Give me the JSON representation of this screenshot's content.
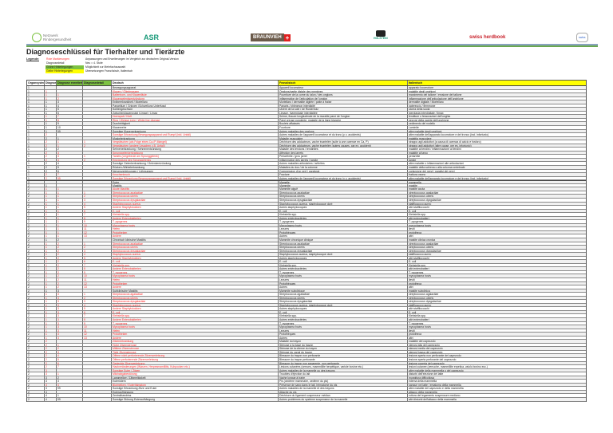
{
  "logos": {
    "netzwerk": "Netzwerk Rindergesundheit",
    "asr": "ASR",
    "braunvieh": "BRAUNVIEH",
    "holstein": "HOLSTEIN",
    "herdbook": "swiss herdbook",
    "last": "swiss"
  },
  "title": "Diagnoseschlüssel für Tierhalter und Tierärzte",
  "legend": {
    "label": "Legende:",
    "items": [
      {
        "key": "Rote Markierungen",
        "desc": "Anpassungen und Erweiterungen im Vergleich zur deutschen Original-Version"
      },
      {
        "key": "Diagnosedetail",
        "desc": "Neu = 4. Stufe"
      },
      {
        "key": "Grüne Hinterlegungen",
        "desc": "Möglichkeit zur Mehrfachauswahl"
      },
      {
        "key": "Gelbe Hinterlegungen",
        "desc": "Übersetzungen Französisch, Italienisch"
      }
    ]
  },
  "colors": {
    "red": "#ff2a2a",
    "green": "#7dc242",
    "yellow": "#ffff00"
  },
  "headers": [
    "Organsystem",
    "Diagnose",
    "Diagnose erweitert",
    "Diagnosedetail",
    "Deutsch",
    "Französisch",
    "Italienisch"
  ],
  "rows": [
    [
      "1",
      "",
      "",
      "",
      "Bewegungsapparat",
      "Appareil locomoteur",
      "apparato locomotore",
      0
    ],
    [
      "1",
      "1",
      "",
      "",
      "Klauen / Gliedmassen",
      "Onglons/partie distale des membres",
      "malattie degli unghioni",
      1
    ],
    [
      "1",
      "1",
      "1",
      "",
      "Ballenhorn- und Klauenfäule",
      "Pourriture de la corne du talon / des onglons",
      "marcimento del tallone / erosione del tallone",
      1
    ],
    [
      "1",
      "1",
      "2",
      "",
      "Klauengelenksentzündung",
      "Inflammation de l'articulation de l'onglon",
      "infiammazione dell'articolazione dell'unghione",
      1
    ],
    [
      "1",
      "1",
      "3",
      "",
      "Erdbeerkrankheit / Mortellaro",
      "Mortellaro / dermatite digitée / patte à fraise",
      "dermatite digitale / Mortellaro",
      0
    ],
    [
      "1",
      "1",
      "4",
      "",
      "Panaritium / Grippen (Schwellung Unterfuss)",
      "Panaris / phlegmon interdigité",
      "patereccio / flemmone",
      0
    ],
    [
      "1",
      "1",
      "5",
      "",
      "Sohlengeschwür",
      "Ulcère de la sole / de Rusterholz",
      "ulcera della suola",
      0
    ],
    [
      "1",
      "1",
      "6",
      "",
      "Zwischenklauenwulst (Limax) / Limax",
      "Limace, hyperplasie interdigitée",
      "iperplasia interdigitale / limax",
      0
    ],
    [
      "1",
      "1",
      "7",
      "",
      "Hornspalt / Kluft",
      "Seime, fissure longitudinale de la muraille paroi de l'onglon",
      "fenditure o fessurazioni dell'unghia",
      1
    ],
    [
      "1",
      "1",
      "8",
      "",
      "Ring / Weisse Linie / White line disease",
      "Paroi creuse purulente, maladie de la ligne blanche",
      "necrosi della parete dell'unghione",
      1
    ],
    [
      "1",
      "1",
      "9",
      "",
      "Durchtrittigkeit",
      "Boulets affaissés",
      "cedimento del nodello",
      0
    ],
    [
      "1",
      "1",
      "10",
      "",
      "Klauenrehe",
      "Fourbure",
      "Laminite",
      0
    ],
    [
      "1",
      "1",
      "99",
      "",
      "Sonstige Klauenerkrankung",
      "Autres maladies des onglons",
      "altre malattie degli unghioni",
      0
    ],
    [
      "1",
      "2",
      "",
      "",
      "Sonstige Erkrankung Bewegungsapparat und Rumpf (inkl. Unfall)",
      "Autres maladies de l'appareil locomoteur et du tronc (y c. accidents)",
      "altre malattie dell'apparato locomotore e del tronco (incl. infortunio)",
      1
    ],
    [
      "1",
      "2",
      "1",
      "",
      "Muskelerkrankung",
      "Maladie musculaire",
      "malattia muscolare",
      0
    ],
    [
      "1",
      "2",
      "1",
      "1",
      "Vergrätschen (als Folge eines Ca-/P-Mangel)",
      "Déchirure des adducteurs, vache écartelée (suite à une carence en Ca, P)",
      "strappo agli adduttori (a causa di carenza di calcio e fosforo)",
      1
    ],
    [
      "1",
      "2",
      "1",
      "2",
      "Vergrätschen (andere Ursachen z.B. Unfall)",
      "Déchirure des adducteurs, vache écartelée (autres causes, par ex. accident)",
      "strappo agli adduttori (altre cause, per es. infortunio)",
      1
    ],
    [
      "1",
      "2",
      "2",
      "",
      "Sehnenerkrankung / Sehnenentzündung",
      "Maladie des tendons / tendinites",
      "malattie ai tendini / infiammazione ai tendini",
      0
    ],
    [
      "1",
      "2",
      "3",
      "",
      "Sprunggelenkerkrankung",
      "Affection des jarrets",
      "malattie al tarso",
      1
    ],
    [
      "1",
      "2",
      "3",
      "1",
      "Tarsitis (Liegebeule am Sprunggelenk)",
      "Periarthrite / gros jarret",
      "periartrite",
      1
    ],
    [
      "1",
      "2",
      "3",
      "2",
      "Entzündung des Sprunggelenks",
      "Inflammation des jarrets / tarsite",
      "tarsite",
      1
    ],
    [
      "1",
      "2",
      "4",
      "",
      "Sonstige Gelenkerkrankung / Gelenkentzündung",
      "Autres maladies articulaires / arthrites",
      "altre malattie o infiammazioni alle articolazioni",
      0
    ],
    [
      "1",
      "2",
      "5",
      "",
      "Rücken-/Wirbelerkrankung",
      "Maladies du dos / de la colonne",
      "malattie della schiena o alla colonna vertebrale",
      0
    ],
    [
      "1",
      "2",
      "6",
      "",
      "Nervenverletzungen / Lähmungen",
      "Compression d'un nerf / paralysie",
      "contusione dei nervi / paralisi dei nervi",
      0
    ],
    [
      "1",
      "2",
      "7",
      "",
      "Knochenbruch",
      "Fracture",
      "frattura ossea",
      1
    ],
    [
      "1",
      "2",
      "99",
      "",
      "Sonstige Erkrankung Bewegungsapparat und Rumpf (inkl. Unfall)",
      "Autres maladies de l'appareil locomoteur et du tronc (y c. accidents)",
      "altre malattie dell'apparato locomotore e del tronco (incl. infortunio)",
      1
    ],
    [
      "2",
      "",
      "",
      "",
      "Euter",
      "Mamelle",
      "mammella",
      0
    ],
    [
      "2",
      "1",
      "",
      "",
      "Mastitis",
      "Mammite",
      "mastite",
      0
    ],
    [
      "2",
      "1",
      "1",
      "",
      "Akute Mastitis",
      "Mammite aiguë",
      "mastite acuta",
      1
    ],
    [
      "2",
      "1",
      "1",
      "1",
      "Streptococcus agalactiae",
      "Streptococcus agalactiae",
      "streptococcus agalactiae",
      1
    ],
    [
      "2",
      "1",
      "1",
      "2",
      "Streptococcus uberis",
      "Streptococcus uberis",
      "streptococcus uberis",
      1
    ],
    [
      "2",
      "1",
      "1",
      "3",
      "Streptococcus dysgalactiae",
      "Streptococcus dysgalactiae",
      "streptococcus dysgalactiae",
      1
    ],
    [
      "2",
      "1",
      "1",
      "4",
      "Staphylococcus aureus",
      "Staphylococcus aureus, staphylocoque doré",
      "staffilococco aureo",
      1
    ],
    [
      "2",
      "1",
      "1",
      "5",
      "Andere Staphylokokken",
      "Autres staphylocoques",
      "altri staffilococchi",
      1
    ],
    [
      "2",
      "1",
      "1",
      "6",
      "E. coli",
      "E. coli",
      "E. coli",
      1
    ],
    [
      "2",
      "1",
      "1",
      "7",
      "Klebsiella spp.",
      "Klebsiella spp.",
      "Klebsiella spp.",
      1
    ],
    [
      "2",
      "1",
      "1",
      "8",
      "Andere Enterobakterien",
      "Autres entérobactéries",
      "altri enterobatteri",
      1
    ],
    [
      "2",
      "1",
      "1",
      "9",
      "T. pyogenes",
      "T. pyogenes",
      "T. pyogenes",
      1
    ],
    [
      "2",
      "1",
      "1",
      "10",
      "Mycoplasma bovis",
      "Mycoplasma bovis",
      "mycoplasma bovis",
      1
    ],
    [
      "2",
      "1",
      "1",
      "11",
      "Hefen",
      "Levures",
      "lieviti",
      1
    ],
    [
      "2",
      "1",
      "1",
      "12",
      "Prototheken",
      "Protothèques",
      "prototheca",
      1
    ],
    [
      "2",
      "1",
      "1",
      "13",
      "Andere",
      "Autres",
      "altri",
      1
    ],
    [
      "2",
      "1",
      "2",
      "",
      "Chronisch klinische Mastitis",
      "Mammite chronique clinique",
      "mastite clinica cronica",
      0
    ],
    [
      "2",
      "1",
      "2",
      "1",
      "Streptococcus agalactiae",
      "Streptococcus agalactiae",
      "streptococcus agalactiae",
      1
    ],
    [
      "2",
      "1",
      "2",
      "2",
      "Streptococcus uberis",
      "Streptococcus uberis",
      "streptococcus uberis",
      1
    ],
    [
      "2",
      "1",
      "2",
      "3",
      "Streptococcus dysgalactiae",
      "Streptococcus dysgalactiae",
      "streptococcus dysgalactiae",
      1
    ],
    [
      "2",
      "1",
      "2",
      "4",
      "Staphylococcus aureus",
      "Staphylococcus aureus, staphylocoque doré",
      "staffilococco aureo",
      1
    ],
    [
      "2",
      "1",
      "2",
      "5",
      "Andere Staphylokokken",
      "Autres staphylocoques",
      "altri staffilococchi",
      1
    ],
    [
      "2",
      "1",
      "2",
      "6",
      "E. coli",
      "E. coli",
      "E. coli",
      1
    ],
    [
      "2",
      "1",
      "2",
      "7",
      "Klebsiella spp.",
      "Klebsiella spp.",
      "Klebsiella spp.",
      1
    ],
    [
      "2",
      "1",
      "2",
      "8",
      "Andere Enterobakterien",
      "Autres entérobactéries",
      "altri enterobatteri",
      1
    ],
    [
      "2",
      "1",
      "2",
      "9",
      "T. pyogenes",
      "T. pyogenes",
      "T. pyogenes",
      1
    ],
    [
      "2",
      "1",
      "2",
      "10",
      "Mycoplasma bovis",
      "Mycoplasma bovis",
      "mycoplasma bovis",
      1
    ],
    [
      "2",
      "1",
      "2",
      "11",
      "Hefen",
      "Levures",
      "lieviti",
      1
    ],
    [
      "2",
      "1",
      "2",
      "12",
      "Prototheken",
      "Protothèques",
      "prototheca",
      1
    ],
    [
      "2",
      "1",
      "2",
      "13",
      "Andere",
      "Autres",
      "altri",
      1
    ],
    [
      "2",
      "1",
      "3",
      "",
      "Subklinische Mastitis",
      "Mammite subclinique",
      "mastite subclinica",
      0
    ],
    [
      "2",
      "1",
      "3",
      "1",
      "Streptococcus agalactiae",
      "Streptococcus agalactiae",
      "streptococcus agalactiae",
      1
    ],
    [
      "2",
      "1",
      "3",
      "2",
      "Streptococcus uberis",
      "Streptococcus uberis",
      "streptococcus uberis",
      1
    ],
    [
      "2",
      "1",
      "3",
      "3",
      "Streptococcus dysgalactiae",
      "Streptococcus dysgalactiae",
      "streptococcus dysgalactiae",
      1
    ],
    [
      "2",
      "1",
      "3",
      "4",
      "Staphylococcus aureus",
      "Staphylococcus aureus, staphylocoque doré",
      "staffilococco aureo",
      1
    ],
    [
      "2",
      "1",
      "3",
      "5",
      "Andere Staphylokokken",
      "Autres staphylocoques",
      "altri staffilococchi",
      1
    ],
    [
      "2",
      "1",
      "3",
      "6",
      "E. coli",
      "E. coli",
      "E. coli",
      1
    ],
    [
      "2",
      "1",
      "3",
      "7",
      "Klebsiella spp.",
      "Klebsiella spp.",
      "Klebsiella spp.",
      1
    ],
    [
      "2",
      "1",
      "3",
      "8",
      "Andere Enterobakterien",
      "Autres entérobactéries",
      "altri enterobatteri",
      1
    ],
    [
      "2",
      "1",
      "3",
      "9",
      "T. pyogenes",
      "T. pyogenes",
      "T. pyogenes",
      1
    ],
    [
      "2",
      "1",
      "3",
      "10",
      "Mycoplasma bovis",
      "Mycoplasma bovis",
      "mycoplasma bovis",
      1
    ],
    [
      "2",
      "1",
      "3",
      "11",
      "Hefen",
      "Levures",
      "lieviti",
      1
    ],
    [
      "2",
      "1",
      "3",
      "12",
      "Prototheken",
      "Protothèques",
      "prototheca",
      1
    ],
    [
      "2",
      "1",
      "3",
      "13",
      "Andere",
      "Autres",
      "altri",
      1
    ],
    [
      "2",
      "2",
      "",
      "",
      "Zitzenerkrankung",
      "Maladie du trayon",
      "malattie del capezzolo",
      1
    ],
    [
      "2",
      "2",
      "1",
      "",
      "Hohe Zitzenstenose",
      "Sténose à la base du trayon",
      "stenosi alta del capezzolo",
      1
    ],
    [
      "2",
      "2",
      "2",
      "",
      "Mittlere Zitzenstenose",
      "Sténose de la citerne du trayon",
      "stenosi media del capezzolo",
      1
    ],
    [
      "2",
      "2",
      "3",
      "",
      "Tiefe Zitzenstenose",
      "Sténose du canal du trayon",
      "stenosi bassa del capezzolo",
      1
    ],
    [
      "2",
      "2",
      "4",
      "",
      "Offene nicht perforierende Zitzenverletzung",
      "Blessure du trayon non perforante",
      "lesione aperta non perforante del capezzolo",
      1
    ],
    [
      "2",
      "2",
      "5",
      "",
      "Offene perforierende Zitzenverletzung",
      "Blessure du trayon perforante",
      "lesione aperta perforante del capezzolo",
      1
    ],
    [
      "2",
      "2",
      "6",
      "",
      "Gedeckte Zitzenverletzung",
      "Blessure du trayon non apparente, non perforante",
      "lesione coperta del capezzolo",
      1
    ],
    [
      "2",
      "2",
      "7",
      "",
      "Hautveränderungen (Warzen, Herpesmamillitis, Kuhpocken etc.)",
      "Lésions cutanées (verrues, mammillite herpétique, variole bovine etc.)",
      "lesioni cutanee (verruche, mammillite erpetica, vaiolo bovino ecc.)",
      1
    ],
    [
      "2",
      "3",
      "",
      "",
      "Sonstige Euter / Zitzen",
      "Autres maladies de la mamelle ou des trayons",
      "altre malattie della mammella o del capezzolo",
      1
    ],
    [
      "2",
      "3",
      "1",
      "",
      "Milchabgabestörung",
      "Troubles d'éjection du lait",
      "disturbi dell'eiezione del latte",
      1
    ],
    [
      "2",
      "3",
      "2",
      "",
      "Langmelker / Zähmelkigkeit",
      "Vache longue à traire",
      "mungitura difficoltosa",
      0
    ],
    [
      "2",
      "3",
      "3",
      "",
      "Euterödem",
      "Pis (oedème mammaire, oedème du pis)",
      "edema della mammella",
      0
    ],
    [
      "2",
      "3",
      "4",
      "",
      "Blutmelken / Euterhämatom",
      "Présence de sang dans le lait, hématome du pis",
      "sangue nel latte / ematoma della mammella",
      1
    ],
    [
      "2",
      "3",
      "99",
      "",
      "Sonstige Erkrankung Zitze und Euter",
      "Autres maladies de la mamelle et des trayons",
      "altre malattie del capezzolo e della mammella",
      0
    ],
    [
      "2",
      "4",
      "",
      "",
      "Euteraufhängung",
      "Attache du pis",
      "attacco della mammella",
      0
    ],
    [
      "2",
      "4",
      "1",
      "",
      "Zentralbandriss",
      "Déchirure du ligament suspenseur médian",
      "rottura del legamento sospensore mediano",
      0
    ],
    [
      "2",
      "4",
      "99",
      "",
      "Sonstige Störung Euteraufhängung",
      "Autres problèmes du système suspenseur de la mamelle",
      "altri disturbi dell'attacco della mammella",
      0
    ]
  ]
}
